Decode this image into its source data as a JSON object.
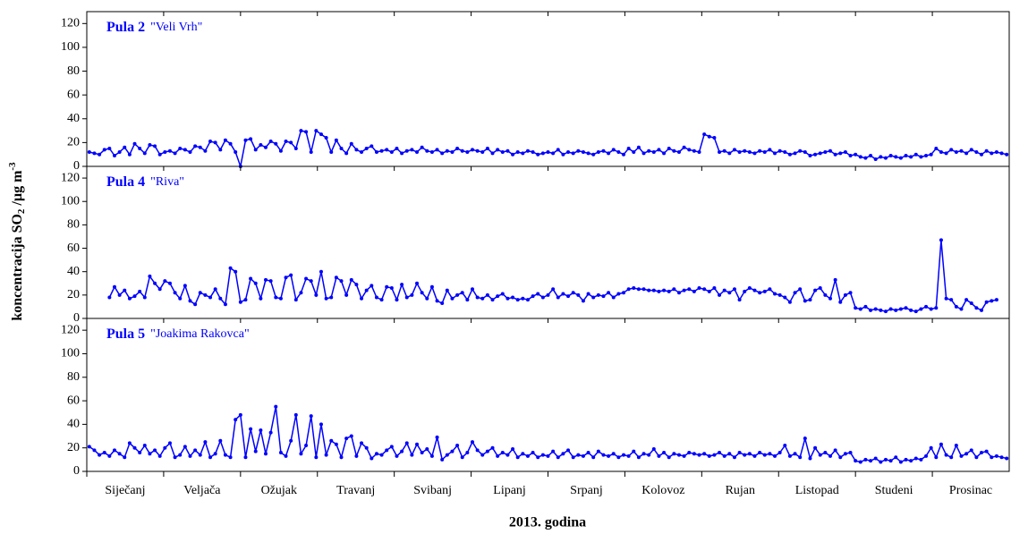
{
  "chart_data": {
    "type": "line",
    "xlabel": "2013. godina",
    "ylabel": {
      "main": "koncentracija SO",
      "sub": "2",
      "unit": " /µg m",
      "sup": "-3"
    },
    "categories": [
      "Siječanj",
      "Veljača",
      "Ožujak",
      "Travanj",
      "Svibanj",
      "Lipanj",
      "Srpanj",
      "Kolovoz",
      "Rujan",
      "Listopad",
      "Studeni",
      "Prosinac"
    ],
    "xlim": [
      0,
      366
    ],
    "ylim": [
      0,
      130
    ],
    "yticks": [
      0,
      20,
      40,
      60,
      80,
      100,
      120
    ],
    "x": [
      1,
      3,
      5,
      7,
      9,
      11,
      13,
      15,
      17,
      19,
      21,
      23,
      25,
      27,
      29,
      31,
      33,
      35,
      37,
      39,
      41,
      43,
      45,
      47,
      49,
      51,
      53,
      55,
      57,
      59,
      61,
      63,
      65,
      67,
      69,
      71,
      73,
      75,
      77,
      79,
      81,
      83,
      85,
      87,
      89,
      91,
      93,
      95,
      97,
      99,
      101,
      103,
      105,
      107,
      109,
      111,
      113,
      115,
      117,
      119,
      121,
      123,
      125,
      127,
      129,
      131,
      133,
      135,
      137,
      139,
      141,
      143,
      145,
      147,
      149,
      151,
      153,
      155,
      157,
      159,
      161,
      163,
      165,
      167,
      169,
      171,
      173,
      175,
      177,
      179,
      181,
      183,
      185,
      187,
      189,
      191,
      193,
      195,
      197,
      199,
      201,
      203,
      205,
      207,
      209,
      211,
      213,
      215,
      217,
      219,
      221,
      223,
      225,
      227,
      229,
      231,
      233,
      235,
      237,
      239,
      241,
      243,
      245,
      247,
      249,
      251,
      253,
      255,
      257,
      259,
      261,
      263,
      265,
      267,
      269,
      271,
      273,
      275,
      277,
      279,
      281,
      283,
      285,
      287,
      289,
      291,
      293,
      295,
      297,
      299,
      301,
      303,
      305,
      307,
      309,
      311,
      313,
      315,
      317,
      319,
      321,
      323,
      325,
      327,
      329,
      331,
      333,
      335,
      337,
      339,
      341,
      343,
      345,
      347,
      349,
      351,
      353,
      355,
      357,
      359,
      361,
      363,
      365
    ],
    "series": [
      {
        "name": "Pula 2",
        "station": "\"Veli Vrh\"",
        "color": "#0000ff",
        "values": [
          12,
          11,
          10,
          14,
          15,
          9,
          12,
          16,
          10,
          19,
          15,
          11,
          18,
          17,
          10,
          12,
          13,
          11,
          15,
          14,
          12,
          17,
          16,
          13,
          21,
          20,
          14,
          22,
          19,
          12,
          0,
          22,
          23,
          14,
          18,
          16,
          21,
          19,
          13,
          21,
          20,
          15,
          30,
          29,
          12,
          30,
          27,
          24,
          12,
          22,
          15,
          11,
          19,
          14,
          12,
          15,
          17,
          12,
          13,
          14,
          12,
          15,
          11,
          13,
          14,
          12,
          16,
          13,
          12,
          14,
          11,
          13,
          12,
          15,
          13,
          12,
          14,
          13,
          12,
          15,
          11,
          14,
          12,
          13,
          10,
          12,
          11,
          13,
          12,
          10,
          11,
          12,
          11,
          14,
          10,
          12,
          11,
          13,
          12,
          11,
          10,
          12,
          13,
          11,
          14,
          12,
          10,
          15,
          12,
          16,
          11,
          13,
          12,
          14,
          11,
          15,
          13,
          12,
          16,
          14,
          13,
          12,
          27,
          25,
          24,
          12,
          13,
          11,
          14,
          12,
          13,
          12,
          11,
          13,
          12,
          14,
          11,
          13,
          12,
          10,
          11,
          13,
          12,
          9,
          10,
          11,
          12,
          13,
          10,
          11,
          12,
          9,
          10,
          8,
          7,
          9,
          6,
          8,
          7,
          9,
          8,
          7,
          9,
          8,
          10,
          8,
          9,
          10,
          15,
          12,
          11,
          14,
          12,
          13,
          11,
          14,
          12,
          10,
          13,
          11,
          12,
          11,
          10
        ]
      },
      {
        "name": "Pula 4",
        "station": "\"Riva\"",
        "color": "#0000ff",
        "values": [
          null,
          null,
          null,
          null,
          18,
          27,
          20,
          24,
          17,
          19,
          23,
          18,
          36,
          30,
          25,
          32,
          30,
          22,
          17,
          28,
          15,
          12,
          22,
          20,
          18,
          25,
          17,
          12,
          43,
          40,
          14,
          16,
          34,
          30,
          17,
          33,
          32,
          18,
          17,
          35,
          37,
          16,
          22,
          34,
          32,
          20,
          40,
          17,
          18,
          35,
          32,
          20,
          33,
          29,
          17,
          24,
          28,
          18,
          16,
          27,
          26,
          16,
          29,
          18,
          20,
          30,
          22,
          17,
          27,
          15,
          13,
          24,
          17,
          20,
          22,
          16,
          25,
          18,
          17,
          20,
          16,
          19,
          21,
          17,
          18,
          16,
          17,
          16,
          19,
          21,
          18,
          20,
          25,
          18,
          21,
          19,
          22,
          20,
          15,
          21,
          18,
          20,
          19,
          22,
          18,
          21,
          22,
          25,
          26,
          25,
          25,
          24,
          24,
          23,
          24,
          23,
          25,
          22,
          24,
          25,
          23,
          26,
          25,
          23,
          26,
          20,
          24,
          22,
          25,
          16,
          23,
          26,
          24,
          22,
          23,
          25,
          21,
          20,
          18,
          14,
          22,
          25,
          15,
          16,
          24,
          26,
          20,
          17,
          33,
          14,
          20,
          22,
          9,
          8,
          10,
          7,
          8,
          7,
          6,
          8,
          7,
          8,
          9,
          7,
          6,
          8,
          10,
          8,
          9,
          67,
          17,
          16,
          10,
          8,
          16,
          13,
          9,
          7,
          14,
          15,
          16,
          null,
          null
        ]
      },
      {
        "name": "Pula 5",
        "station": "\"Joakima Rakovca\"",
        "color": "#0000ff",
        "values": [
          21,
          18,
          14,
          16,
          13,
          18,
          15,
          12,
          24,
          20,
          16,
          22,
          15,
          18,
          13,
          20,
          24,
          12,
          14,
          21,
          13,
          18,
          14,
          25,
          12,
          15,
          26,
          14,
          12,
          44,
          48,
          12,
          36,
          17,
          35,
          15,
          33,
          55,
          16,
          13,
          26,
          48,
          15,
          22,
          47,
          12,
          40,
          14,
          26,
          23,
          12,
          28,
          30,
          13,
          24,
          20,
          11,
          15,
          14,
          18,
          21,
          13,
          17,
          24,
          14,
          23,
          16,
          19,
          13,
          29,
          10,
          14,
          17,
          22,
          12,
          16,
          25,
          18,
          14,
          17,
          20,
          13,
          16,
          14,
          19,
          12,
          15,
          13,
          16,
          12,
          14,
          13,
          17,
          12,
          15,
          18,
          12,
          14,
          13,
          16,
          12,
          17,
          14,
          13,
          15,
          12,
          14,
          13,
          17,
          12,
          15,
          14,
          19,
          13,
          16,
          12,
          15,
          14,
          13,
          16,
          15,
          14,
          15,
          13,
          14,
          16,
          13,
          15,
          12,
          16,
          14,
          15,
          13,
          16,
          14,
          15,
          13,
          16,
          22,
          13,
          15,
          12,
          28,
          11,
          20,
          14,
          16,
          13,
          18,
          12,
          15,
          16,
          9,
          8,
          10,
          9,
          11,
          8,
          10,
          9,
          12,
          8,
          10,
          9,
          11,
          10,
          13,
          20,
          12,
          23,
          14,
          12,
          22,
          13,
          15,
          18,
          12,
          16,
          17,
          12,
          13,
          12,
          11
        ]
      }
    ]
  }
}
